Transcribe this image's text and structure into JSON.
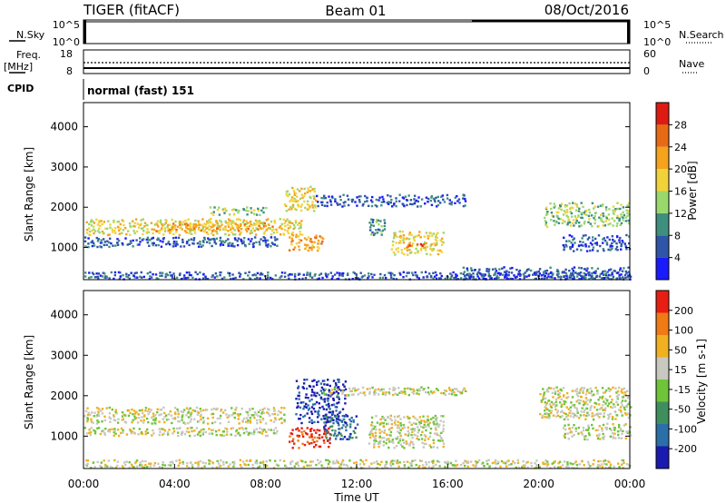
{
  "header": {
    "station": "TIGER (fitACF)",
    "beam": "Beam 01",
    "date": "08/Oct/2016"
  },
  "strips": {
    "nsky_label": "N.Sky",
    "nsearch_label": "N.Search",
    "noise_ticks": [
      "10^5",
      "10^0"
    ],
    "freq_label": "Freq.",
    "freq_unit": "[MHz]",
    "freq_ticks": [
      "18",
      "8"
    ],
    "nave_label": "Nave",
    "nave_ticks": [
      "60",
      "0"
    ],
    "cpid_label": "CPID",
    "cpid_value": "normal (fast) 151"
  },
  "chart_data": [
    {
      "type": "heatmap",
      "title": "",
      "xlabel": "Time UT",
      "ylabel": "Slant Range [km]",
      "xticks": [
        "00:00",
        "04:00",
        "08:00",
        "12:00",
        "16:00",
        "20:00",
        "00:00"
      ],
      "xlim": [
        0,
        24
      ],
      "ylim": [
        200,
        4600
      ],
      "yticks": [
        "1000",
        "2000",
        "3000",
        "4000"
      ],
      "colorbar": {
        "label": "Power [dB]",
        "ticks": [
          "4",
          "8",
          "12",
          "16",
          "20",
          "24",
          "28"
        ],
        "range": [
          0,
          30
        ],
        "colors": [
          "#1a1aff",
          "#2f55a8",
          "#3f8f7e",
          "#9bd86b",
          "#f2d23a",
          "#f5a21c",
          "#e86a14",
          "#dd1b12"
        ]
      },
      "regions": [
        {
          "t0": 0.0,
          "t1": 24.0,
          "r0": 200,
          "r1": 380,
          "level": 1
        },
        {
          "t0": 0.0,
          "t1": 8.5,
          "r0": 1000,
          "r1": 1250,
          "level": 1
        },
        {
          "t0": 0.0,
          "t1": 9.6,
          "r0": 1300,
          "r1": 1700,
          "level": 4
        },
        {
          "t0": 3.0,
          "t1": 8.3,
          "r0": 1400,
          "r1": 1600,
          "level": 5
        },
        {
          "t0": 5.5,
          "t1": 8.0,
          "r0": 1800,
          "r1": 2000,
          "level": 3
        },
        {
          "t0": 8.8,
          "t1": 10.2,
          "r0": 1900,
          "r1": 2500,
          "level": 4
        },
        {
          "t0": 9.0,
          "t1": 10.5,
          "r0": 900,
          "r1": 1300,
          "level": 5
        },
        {
          "t0": 10.2,
          "t1": 16.8,
          "r0": 2000,
          "r1": 2300,
          "level": 1
        },
        {
          "t0": 13.5,
          "t1": 15.8,
          "r0": 800,
          "r1": 1400,
          "level": 4
        },
        {
          "t0": 14.0,
          "t1": 15.0,
          "r0": 1000,
          "r1": 1100,
          "level": 6
        },
        {
          "t0": 12.5,
          "t1": 13.2,
          "r0": 1300,
          "r1": 1700,
          "level": 2
        },
        {
          "t0": 16.5,
          "t1": 24.0,
          "r0": 200,
          "r1": 500,
          "level": 1
        },
        {
          "t0": 20.2,
          "t1": 24.0,
          "r0": 1500,
          "r1": 2100,
          "level": 3
        },
        {
          "t0": 21.0,
          "t1": 24.0,
          "r0": 900,
          "r1": 1300,
          "level": 1
        }
      ]
    },
    {
      "type": "heatmap",
      "title": "",
      "xlabel": "Time UT",
      "ylabel": "Slant Range [km]",
      "xticks": [
        "00:00",
        "04:00",
        "08:00",
        "12:00",
        "16:00",
        "20:00",
        "00:00"
      ],
      "xlim": [
        0,
        24
      ],
      "ylim": [
        200,
        4600
      ],
      "yticks": [
        "1000",
        "2000",
        "3000",
        "4000"
      ],
      "colorbar": {
        "label": "Velocity [m s-1]",
        "ticks": [
          "200",
          "100",
          "50",
          "15",
          "-15",
          "-50",
          "-100",
          "-200"
        ],
        "range": [
          -250,
          250
        ],
        "colors": [
          "#1a1ab0",
          "#2b6fa8",
          "#3f8f5e",
          "#6fc43a",
          "#c8c8c0",
          "#f0b020",
          "#f07a14",
          "#e81e12"
        ]
      },
      "regions": [
        {
          "t0": 0.0,
          "t1": 24.0,
          "r0": 200,
          "r1": 400,
          "level": 4
        },
        {
          "t0": 0.0,
          "t1": 8.8,
          "r0": 1300,
          "r1": 1700,
          "level": 4
        },
        {
          "t0": 0.0,
          "t1": 8.5,
          "r0": 1000,
          "r1": 1200,
          "level": 4
        },
        {
          "t0": 9.0,
          "t1": 10.8,
          "r0": 700,
          "r1": 1200,
          "level": 7
        },
        {
          "t0": 9.3,
          "t1": 11.5,
          "r0": 1300,
          "r1": 2400,
          "level": 0
        },
        {
          "t0": 10.5,
          "t1": 12.0,
          "r0": 900,
          "r1": 1500,
          "level": 1
        },
        {
          "t0": 10.5,
          "t1": 16.8,
          "r0": 2000,
          "r1": 2200,
          "level": 4
        },
        {
          "t0": 12.5,
          "t1": 15.8,
          "r0": 700,
          "r1": 1500,
          "level": 4
        },
        {
          "t0": 20.0,
          "t1": 24.0,
          "r0": 1400,
          "r1": 2200,
          "level": 4
        },
        {
          "t0": 21.0,
          "t1": 24.0,
          "r0": 900,
          "r1": 1300,
          "level": 4
        }
      ]
    }
  ]
}
